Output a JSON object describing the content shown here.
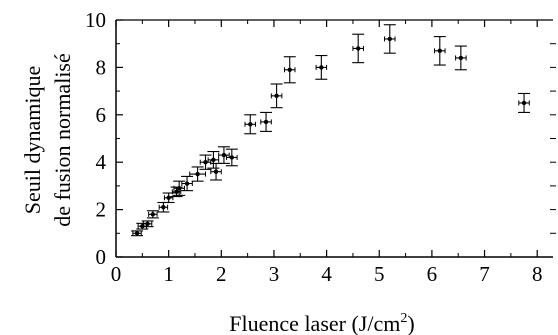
{
  "chart_data": {
    "type": "scatter",
    "title": "",
    "xlabel_main": "Fluence laser (J/cm",
    "xlabel_sup": "2",
    "xlabel_close": ")",
    "ylabel_line1": "Seuil dynamique",
    "ylabel_line2": "de fusion normalisé",
    "xlim": [
      0,
      8.3
    ],
    "ylim": [
      0,
      10
    ],
    "xticks": [
      0,
      1,
      2,
      3,
      4,
      5,
      6,
      7,
      8
    ],
    "yticks": [
      0,
      2,
      4,
      6,
      8,
      10
    ],
    "grid": false,
    "legend": "none",
    "marker_color": "#000000",
    "points": [
      {
        "x": 0.4,
        "y": 1.0,
        "yerr": 0.1,
        "xerr": 0.08
      },
      {
        "x": 0.5,
        "y": 1.3,
        "yerr": 0.12,
        "xerr": 0.08
      },
      {
        "x": 0.6,
        "y": 1.4,
        "yerr": 0.12,
        "xerr": 0.08
      },
      {
        "x": 0.7,
        "y": 1.8,
        "yerr": 0.15,
        "xerr": 0.08
      },
      {
        "x": 0.9,
        "y": 2.1,
        "yerr": 0.2,
        "xerr": 0.08
      },
      {
        "x": 1.0,
        "y": 2.5,
        "yerr": 0.2,
        "xerr": 0.08
      },
      {
        "x": 1.15,
        "y": 2.75,
        "yerr": 0.2,
        "xerr": 0.08
      },
      {
        "x": 1.2,
        "y": 2.9,
        "yerr": 0.3,
        "xerr": 0.1
      },
      {
        "x": 1.35,
        "y": 3.1,
        "yerr": 0.3,
        "xerr": 0.1
      },
      {
        "x": 1.55,
        "y": 3.5,
        "yerr": 0.3,
        "xerr": 0.15
      },
      {
        "x": 1.7,
        "y": 4.0,
        "yerr": 0.3,
        "xerr": 0.1
      },
      {
        "x": 1.85,
        "y": 4.1,
        "yerr": 0.35,
        "xerr": 0.1
      },
      {
        "x": 1.9,
        "y": 3.6,
        "yerr": 0.35,
        "xerr": 0.1
      },
      {
        "x": 2.05,
        "y": 4.3,
        "yerr": 0.35,
        "xerr": 0.1
      },
      {
        "x": 2.2,
        "y": 4.2,
        "yerr": 0.35,
        "xerr": 0.1
      },
      {
        "x": 2.55,
        "y": 5.6,
        "yerr": 0.4,
        "xerr": 0.1
      },
      {
        "x": 2.85,
        "y": 5.7,
        "yerr": 0.4,
        "xerr": 0.1
      },
      {
        "x": 3.05,
        "y": 6.8,
        "yerr": 0.5,
        "xerr": 0.1
      },
      {
        "x": 3.3,
        "y": 7.9,
        "yerr": 0.55,
        "xerr": 0.1
      },
      {
        "x": 3.9,
        "y": 8.0,
        "yerr": 0.5,
        "xerr": 0.1
      },
      {
        "x": 4.6,
        "y": 8.8,
        "yerr": 0.6,
        "xerr": 0.1
      },
      {
        "x": 5.2,
        "y": 9.2,
        "yerr": 0.6,
        "xerr": 0.1
      },
      {
        "x": 6.15,
        "y": 8.7,
        "yerr": 0.6,
        "xerr": 0.1
      },
      {
        "x": 6.55,
        "y": 8.4,
        "yerr": 0.5,
        "xerr": 0.1
      },
      {
        "x": 7.75,
        "y": 6.5,
        "yerr": 0.4,
        "xerr": 0.1
      }
    ]
  }
}
